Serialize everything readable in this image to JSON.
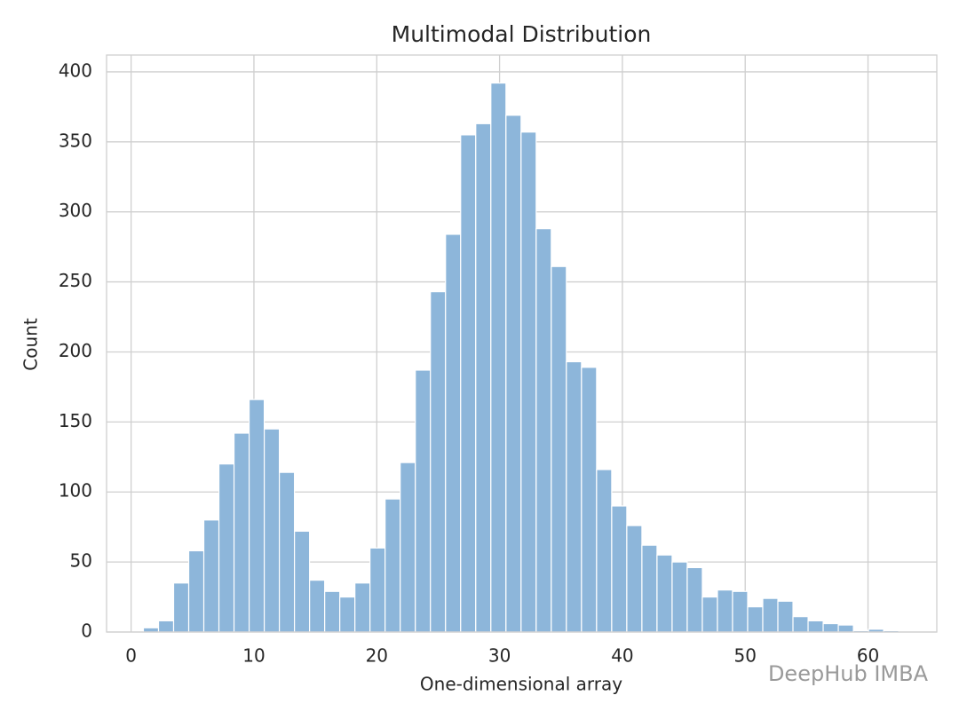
{
  "chart_data": {
    "type": "histogram",
    "title": "Multimodal Distribution",
    "x_label": "One-dimensional array",
    "y_label": "Count",
    "watermark": "DeepHub IMBA",
    "bins": [
      1.0,
      2.23,
      3.46,
      4.69,
      5.92,
      7.15,
      8.38,
      9.61,
      10.84,
      12.07,
      13.3,
      14.53,
      15.76,
      16.99,
      18.22,
      19.45,
      20.68,
      21.91,
      23.14,
      24.37,
      25.6,
      26.83,
      28.06,
      29.29,
      30.52,
      31.75,
      32.98,
      34.21,
      35.44,
      36.67,
      37.9,
      39.13,
      40.36,
      41.59,
      42.82,
      44.05,
      45.28,
      46.51,
      47.74,
      48.97,
      50.2,
      51.43,
      52.66,
      53.89,
      55.12,
      56.35,
      57.58,
      58.81,
      60.04,
      61.27,
      62.5
    ],
    "values": [
      3,
      8,
      35,
      58,
      80,
      120,
      142,
      166,
      145,
      114,
      72,
      37,
      29,
      25,
      35,
      60,
      95,
      121,
      187,
      243,
      284,
      355,
      363,
      392,
      369,
      357,
      288,
      261,
      193,
      189,
      116,
      90,
      76,
      62,
      55,
      50,
      46,
      25,
      30,
      29,
      18,
      24,
      22,
      11,
      8,
      6,
      5,
      1,
      2,
      1
    ],
    "color": "#8db6da",
    "xlim": [
      -2,
      65.6
    ],
    "ylim": [
      0,
      412
    ],
    "xticks": [
      0,
      10,
      20,
      30,
      40,
      50,
      60
    ],
    "yticks": [
      0,
      50,
      100,
      150,
      200,
      250,
      300,
      350,
      400
    ],
    "grid": true
  }
}
